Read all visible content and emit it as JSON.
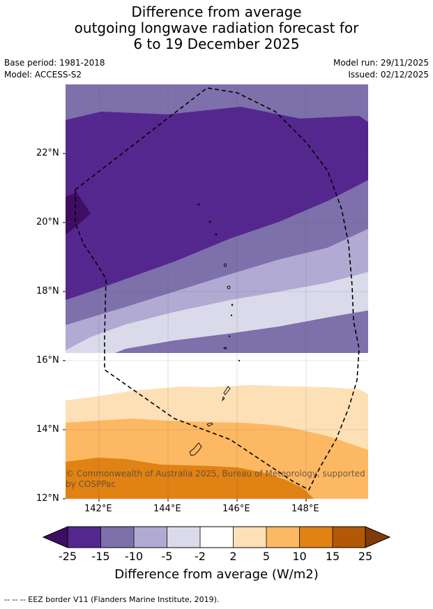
{
  "title": {
    "line1": "Difference from average",
    "line2": "outgoing longwave radiation forecast for",
    "line3": "6 to 19 December 2025"
  },
  "meta": {
    "base_period": "Base period: 1981-2018",
    "model": "Model: ACCESS-S2",
    "model_run": "Model run: 29/11/2025",
    "issued": "Issued: 02/12/2025"
  },
  "map": {
    "lat_ticks": [
      "22°N",
      "20°N",
      "18°N",
      "16°N",
      "14°N",
      "12°N"
    ],
    "lon_ticks": [
      "142°E",
      "144°E",
      "146°E",
      "148°E"
    ],
    "copyright": "© Commonwealth of Australia 2025, Bureau of Meteorology, supported by COSPPac"
  },
  "colorbar": {
    "labels": [
      "-25",
      "-15",
      "-10",
      "-5",
      "-2",
      "2",
      "5",
      "10",
      "15",
      "25"
    ],
    "colors": [
      "#3f0d63",
      "#54278f",
      "#7d70ab",
      "#b1aad3",
      "#dadaeb",
      "#ffffff",
      "#fee0b6",
      "#fdb863",
      "#e08214",
      "#b35806",
      "#7f3b08"
    ],
    "title": "Difference from average (W/m2)"
  },
  "footnote": "--  --  -- EEZ border V11 (Flanders Marine Institute, 2019)."
}
